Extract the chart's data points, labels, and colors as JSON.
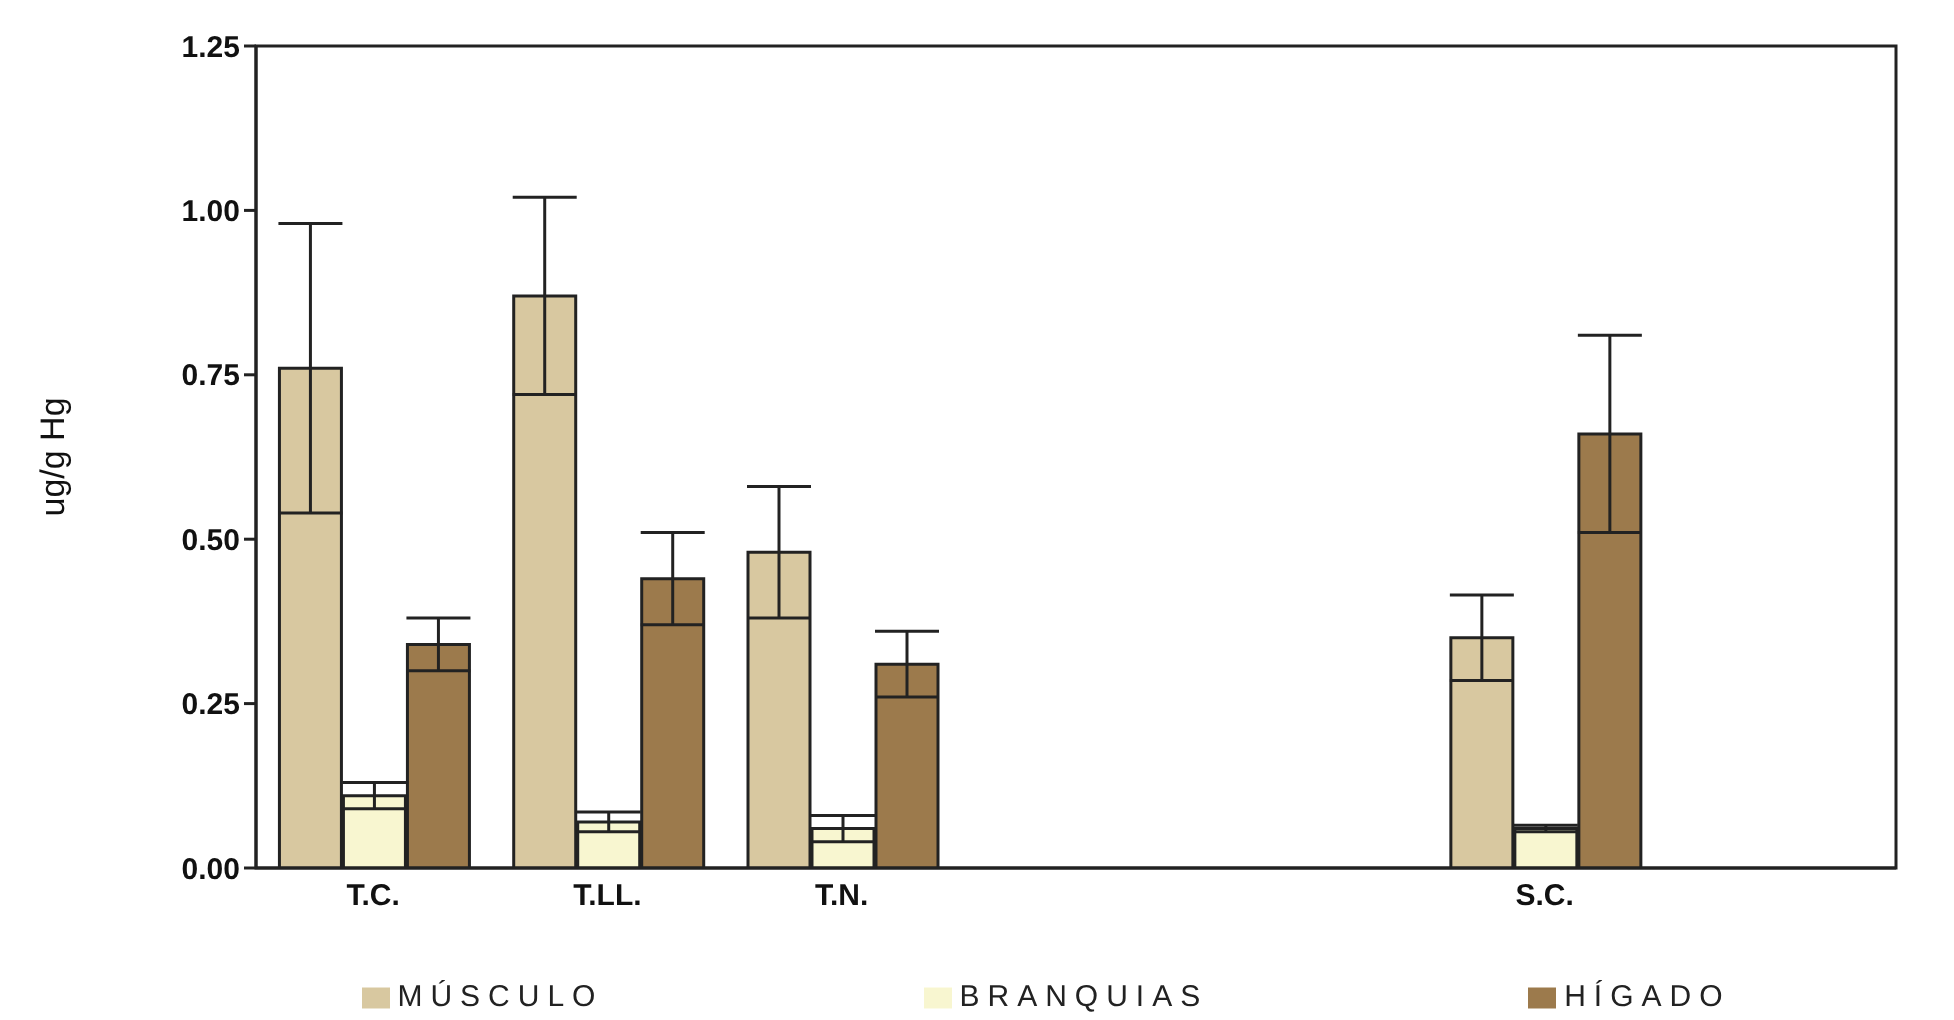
{
  "chart_data": {
    "type": "bar",
    "ylabel": "ug/g Hg",
    "categories": [
      "T.C.",
      "T.LL.",
      "T.N.",
      null,
      null,
      "S.C.",
      null
    ],
    "series": [
      {
        "name": "MÚSCULO",
        "color": "#d8c8a0",
        "values": [
          0.76,
          0.87,
          0.48,
          null,
          null,
          0.35,
          null
        ],
        "errors": [
          0.22,
          0.15,
          0.1,
          null,
          null,
          0.065,
          null
        ]
      },
      {
        "name": "BRANQUIAS",
        "color": "#f8f6d0",
        "values": [
          0.11,
          0.07,
          0.06,
          null,
          null,
          0.06,
          null
        ],
        "errors": [
          0.02,
          0.015,
          0.02,
          null,
          null,
          0.005,
          null
        ]
      },
      {
        "name": "HÍGADO",
        "color": "#9c7a4c",
        "values": [
          0.34,
          0.44,
          0.31,
          null,
          null,
          0.66,
          null
        ],
        "errors": [
          0.04,
          0.07,
          0.05,
          null,
          null,
          0.15,
          null
        ]
      }
    ],
    "ylim": [
      0,
      1.25
    ],
    "yticks": [
      {
        "value": 0,
        "label": "0.00"
      },
      {
        "value": 0.25,
        "label": "0.25"
      },
      {
        "value": 0.5,
        "label": "0.50"
      },
      {
        "value": 0.75,
        "label": "0.75"
      },
      {
        "value": 1,
        "label": "1.00"
      },
      {
        "value": 1.25,
        "label": "1.25"
      }
    ],
    "grid": false,
    "legend": "bottom"
  }
}
